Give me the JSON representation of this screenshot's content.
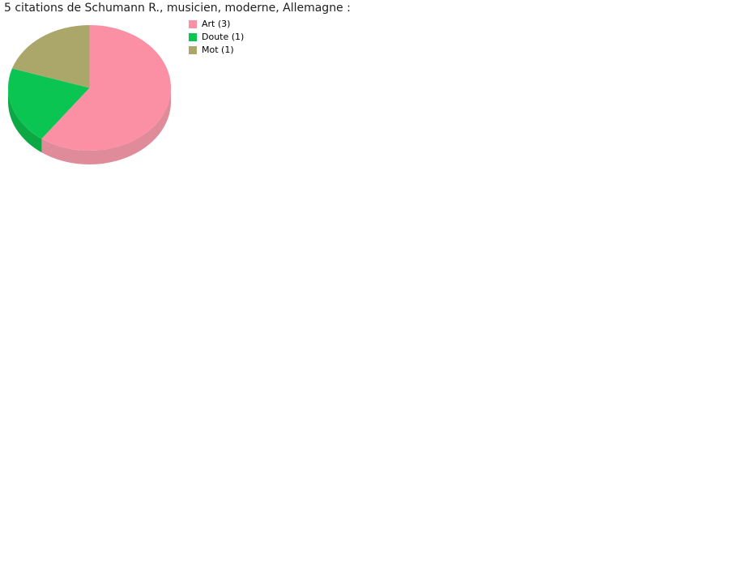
{
  "title": "5 citations de Schumann R., musicien, moderne, Allemagne :",
  "chart_data": {
    "type": "pie",
    "title": "5 citations de Schumann R., musicien, moderne, Allemagne :",
    "total_label": "5 citations",
    "labels": [
      "Art",
      "Doute",
      "Mot"
    ],
    "values": [
      3,
      1,
      1
    ],
    "colors": [
      "#FB90A4",
      "#0BC552",
      "#ABA76B"
    ],
    "side_colors": [
      "#DF8B9A",
      "#0BA844",
      "#8F8C59"
    ],
    "legend": [
      {
        "label": "Art (3)",
        "color": "#FB90A4"
      },
      {
        "label": "Doute (1)",
        "color": "#0BC552"
      },
      {
        "label": "Mot (1)",
        "color": "#ABA76B"
      }
    ],
    "style": "3d",
    "start_angle": "top",
    "direction": "clockwise",
    "legend_position": "right-of-chart",
    "background": "#ffffff"
  }
}
